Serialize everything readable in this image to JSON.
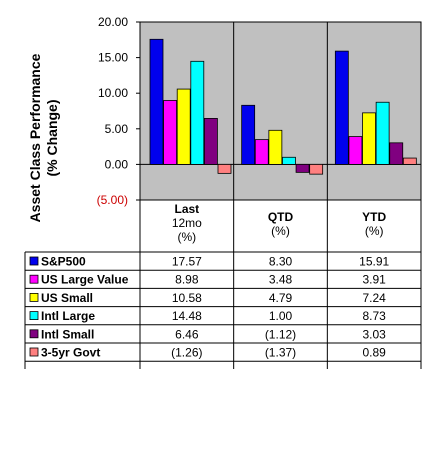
{
  "chart_data": {
    "type": "bar",
    "ylabel_line1": "Asset Class Performance",
    "ylabel_line2": "(% Change)",
    "ylim": [
      -5,
      20
    ],
    "yticks": [
      {
        "value": 20,
        "label": "20.00"
      },
      {
        "value": 15,
        "label": "15.00"
      },
      {
        "value": 10,
        "label": "10.00"
      },
      {
        "value": 5,
        "label": "5.00"
      },
      {
        "value": 0,
        "label": "0.00"
      },
      {
        "value": -5,
        "label": "(5.00)"
      }
    ],
    "categories": [
      {
        "lines": [
          "Last",
          "12mo",
          "(%)"
        ]
      },
      {
        "lines": [
          "QTD",
          "(%)"
        ]
      },
      {
        "lines": [
          "YTD",
          "(%)"
        ]
      }
    ],
    "series": [
      {
        "name": "S&P500",
        "color": "#0000ee",
        "values": [
          17.57,
          8.3,
          15.91
        ],
        "labels": [
          "17.57",
          "8.30",
          "15.91"
        ]
      },
      {
        "name": "US Large Value",
        "color": "#ff00ff",
        "values": [
          8.98,
          3.48,
          3.91
        ],
        "labels": [
          "8.98",
          "3.48",
          "3.91"
        ]
      },
      {
        "name": "US Small",
        "color": "#ffff00",
        "values": [
          10.58,
          4.79,
          7.24
        ],
        "labels": [
          "10.58",
          "4.79",
          "7.24"
        ]
      },
      {
        "name": "Intl Large",
        "color": "#00ffff",
        "values": [
          14.48,
          1.0,
          8.73
        ],
        "labels": [
          "14.48",
          "1.00",
          "8.73"
        ]
      },
      {
        "name": "Intl Small",
        "color": "#800080",
        "values": [
          6.46,
          -1.12,
          3.03
        ],
        "labels": [
          "6.46",
          "(1.12)",
          "3.03"
        ]
      },
      {
        "name": "3-5yr Govt",
        "color": "#ff8080",
        "values": [
          -1.26,
          -1.37,
          0.89
        ],
        "labels": [
          "(1.26)",
          "(1.37)",
          "0.89"
        ]
      }
    ],
    "colors": {
      "plot_bg": "#c0c0c0",
      "negative_tick": "#cc0000",
      "grid": "#000000"
    }
  }
}
